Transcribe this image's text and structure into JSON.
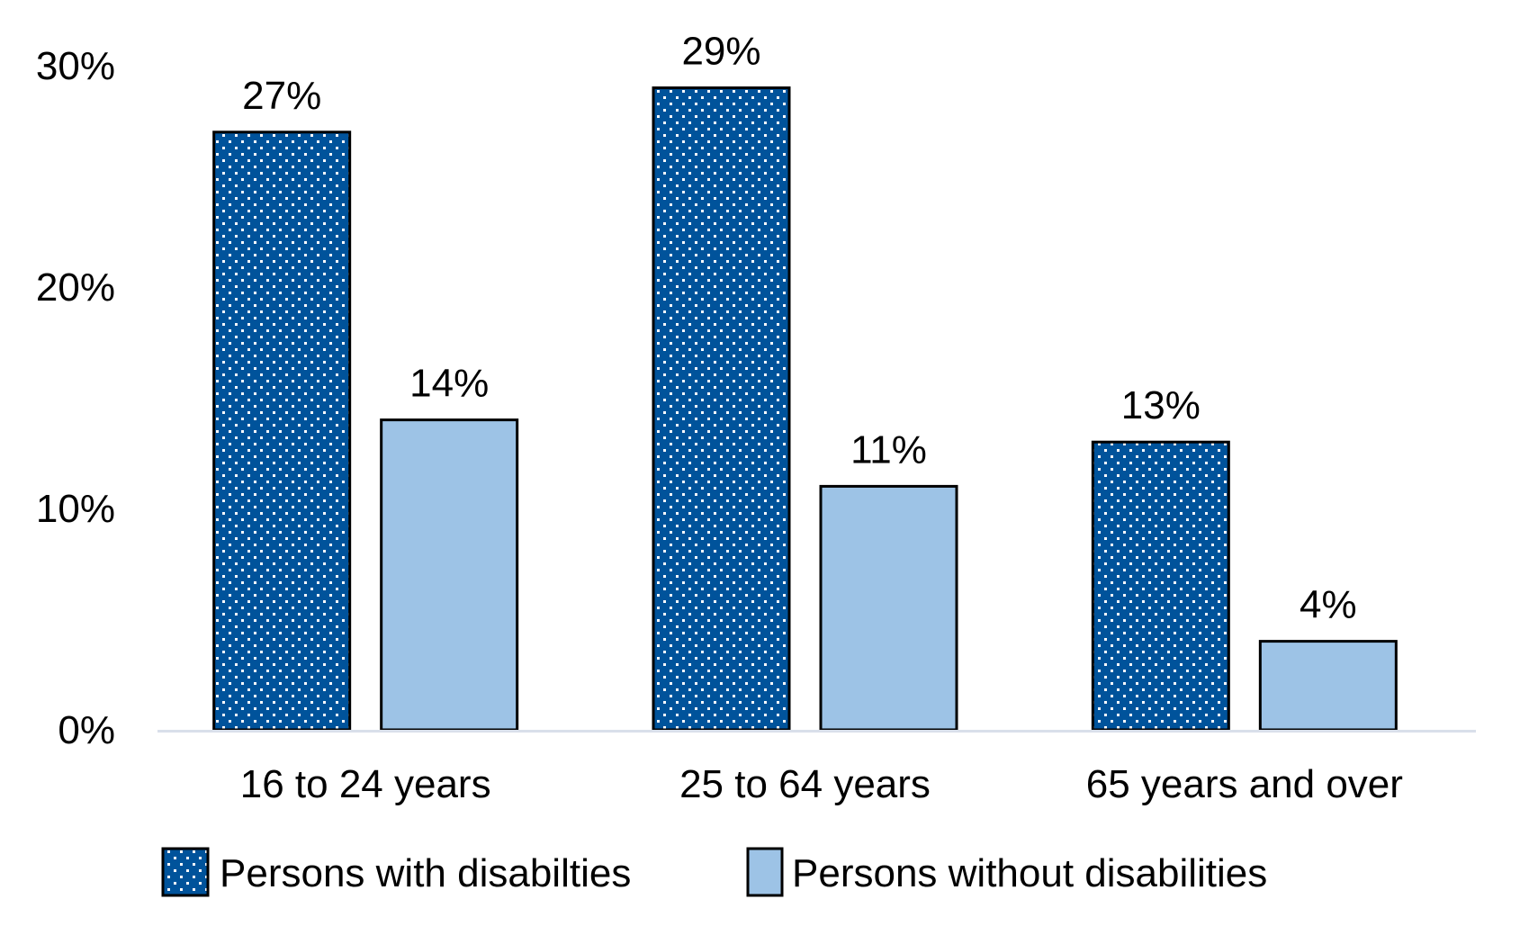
{
  "chart_data": {
    "type": "bar",
    "title": "",
    "xlabel": "",
    "ylabel": "",
    "categories": [
      "16 to 24 years",
      "25 to 64 years",
      "65 years and over"
    ],
    "series": [
      {
        "name": "Persons with disabilties",
        "values": [
          27,
          29,
          13
        ],
        "labels": [
          "27%",
          "29%",
          "13%"
        ],
        "color": "#00539B",
        "pattern": "dotted",
        "pattern_color": "#FFFFFF"
      },
      {
        "name": "Persons without disabilities",
        "values": [
          14,
          11,
          4
        ],
        "labels": [
          "14%",
          "11%",
          "4%"
        ],
        "color": "#9DC3E6",
        "pattern": "solid"
      }
    ],
    "ylim": [
      0,
      30
    ],
    "yticks": [
      0,
      10,
      20,
      30
    ],
    "ytick_labels": [
      "0%",
      "10%",
      "20%",
      "30%"
    ],
    "grid": false,
    "axis_color": "#D9DFEA",
    "bar_border_color": "#000000",
    "legend_position": "bottom"
  }
}
